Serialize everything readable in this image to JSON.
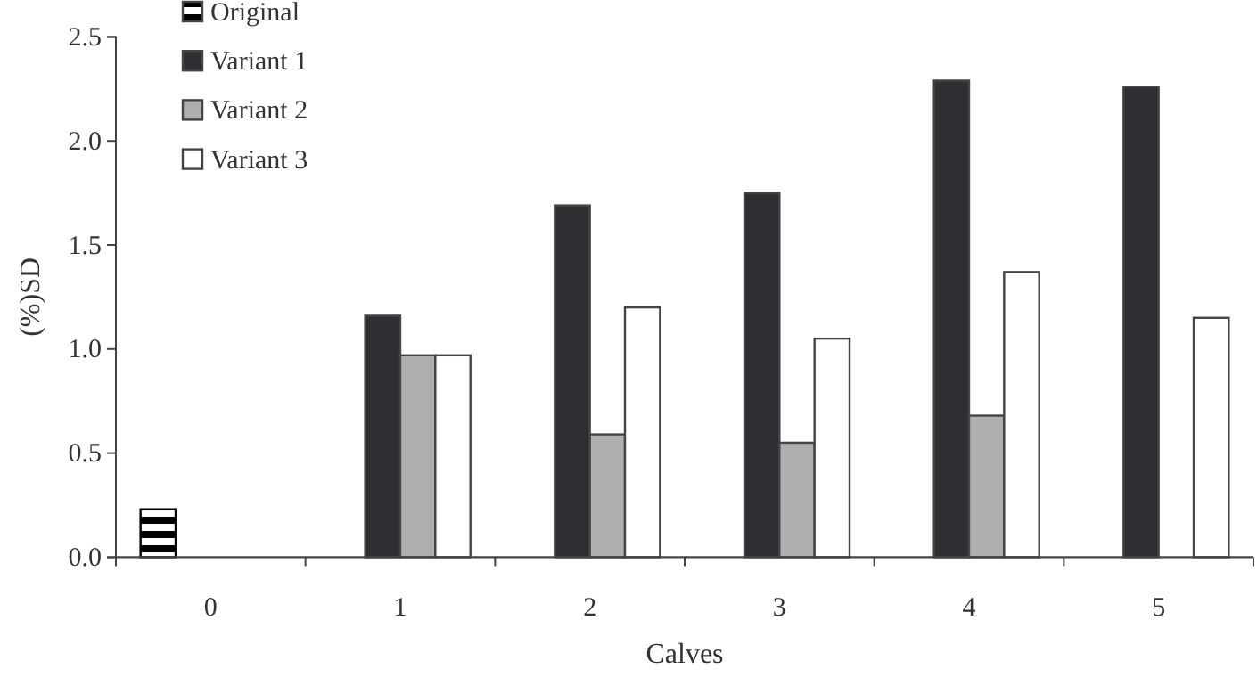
{
  "chart_data": {
    "type": "bar",
    "xlabel": "Calves",
    "ylabel": "(%)SD",
    "categories": [
      "0",
      "1",
      "2",
      "3",
      "4",
      "5"
    ],
    "series": [
      {
        "name": "Original",
        "color": "#000000",
        "values": [
          0.23,
          null,
          null,
          null,
          null,
          null
        ]
      },
      {
        "name": "Variant 1",
        "color": "#2e2f33",
        "values": [
          null,
          1.16,
          1.69,
          1.75,
          2.29,
          2.26
        ]
      },
      {
        "name": "Variant 2",
        "color": "#aeafb1",
        "values": [
          null,
          0.97,
          0.59,
          0.55,
          0.68,
          null
        ]
      },
      {
        "name": "Variant 3",
        "color": "#ffffff",
        "values": [
          null,
          0.97,
          1.2,
          1.05,
          1.37,
          1.15
        ]
      }
    ],
    "ylim": [
      0,
      2.5
    ],
    "yticks": [
      {
        "value": 0,
        "label": "0.0"
      },
      {
        "value": 0.5,
        "label": "0.5"
      },
      {
        "value": 1,
        "label": "1.0"
      },
      {
        "value": 1.5,
        "label": "1.5"
      },
      {
        "value": 2,
        "label": "2.0"
      },
      {
        "value": 2.5,
        "label": "2.5"
      }
    ],
    "legend": "top left",
    "grid": false
  }
}
